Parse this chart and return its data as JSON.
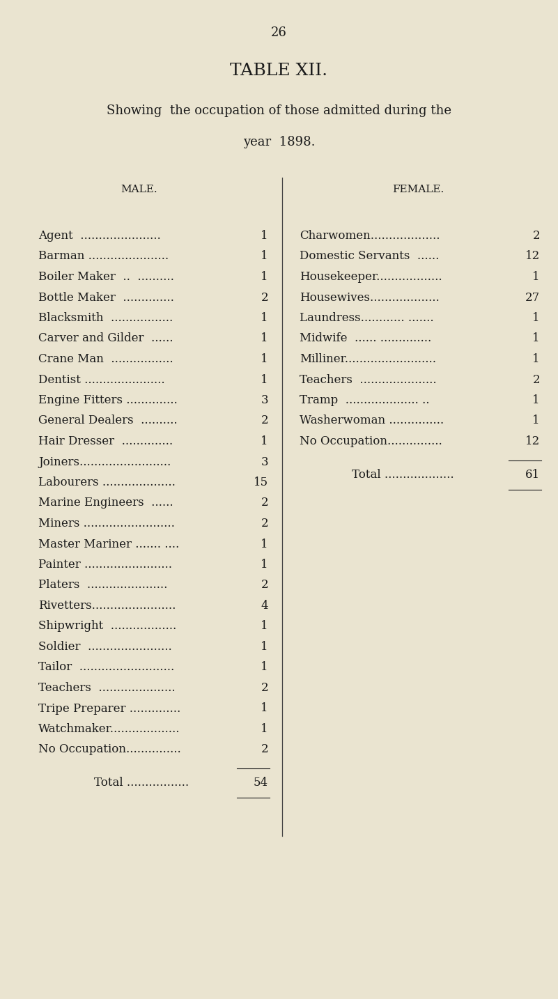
{
  "bg_color": "#EAE4D0",
  "text_color": "#1a1a1a",
  "page_number": "26",
  "title": "TABLE XII.",
  "subtitle_line1": "Showing  the occupation of those admitted during the",
  "subtitle_line2": "year  1898.",
  "male_header": "MALE.",
  "female_header": "FEMALE.",
  "male_rows": [
    [
      "Agent  ......................",
      "1"
    ],
    [
      "Barman ......................",
      "1"
    ],
    [
      "Boiler Maker  ..  ..........",
      "1"
    ],
    [
      "Bottle Maker  ..............",
      "2"
    ],
    [
      "Blacksmith  .................",
      "1"
    ],
    [
      "Carver and Gilder  ......",
      "1"
    ],
    [
      "Crane Man  .................",
      "1"
    ],
    [
      "Dentist ......................",
      "1"
    ],
    [
      "Engine Fitters ..............",
      "3"
    ],
    [
      "General Dealers  ..........",
      "2"
    ],
    [
      "Hair Dresser  ..............",
      "1"
    ],
    [
      "Joiners.........................",
      "3"
    ],
    [
      "Labourers ....................",
      "15"
    ],
    [
      "Marine Engineers  ......",
      "2"
    ],
    [
      "Miners .........................",
      "2"
    ],
    [
      "Master Mariner ....... ....",
      "1"
    ],
    [
      "Painter ........................",
      "1"
    ],
    [
      "Platers  ......................",
      "2"
    ],
    [
      "Rivetters.......................",
      "4"
    ],
    [
      "Shipwright  ..................",
      "1"
    ],
    [
      "Soldier  .......................",
      "1"
    ],
    [
      "Tailor  ..........................",
      "1"
    ],
    [
      "Teachers  .....................",
      "2"
    ],
    [
      "Tripe Preparer ..............",
      "1"
    ],
    [
      "Watchmaker...................",
      "1"
    ],
    [
      "No Occupation...............",
      "2"
    ]
  ],
  "male_total_label": "Total .................",
  "male_total": "54",
  "female_rows": [
    [
      "Charwomen...................",
      "2"
    ],
    [
      "Domestic Servants  ......",
      "12"
    ],
    [
      "Housekeeper..................",
      "1"
    ],
    [
      "Housewives...................",
      "27"
    ],
    [
      "Laundress............ .......",
      "1"
    ],
    [
      "Midwife  ...... ..............",
      "1"
    ],
    [
      "Milliner.........................",
      "1"
    ],
    [
      "Teachers  .....................",
      "2"
    ],
    [
      "Tramp  .................... ..",
      "1"
    ],
    [
      "Washerwoman ...............",
      "1"
    ],
    [
      "No Occupation...............",
      "12"
    ]
  ],
  "female_total_label": "Total ...................",
  "female_total": "61",
  "divider_color": "#444444",
  "font_size_page": 13,
  "font_size_title": 18,
  "font_size_subtitle": 13,
  "font_size_header": 11,
  "font_size_row": 12,
  "font_size_total": 12
}
